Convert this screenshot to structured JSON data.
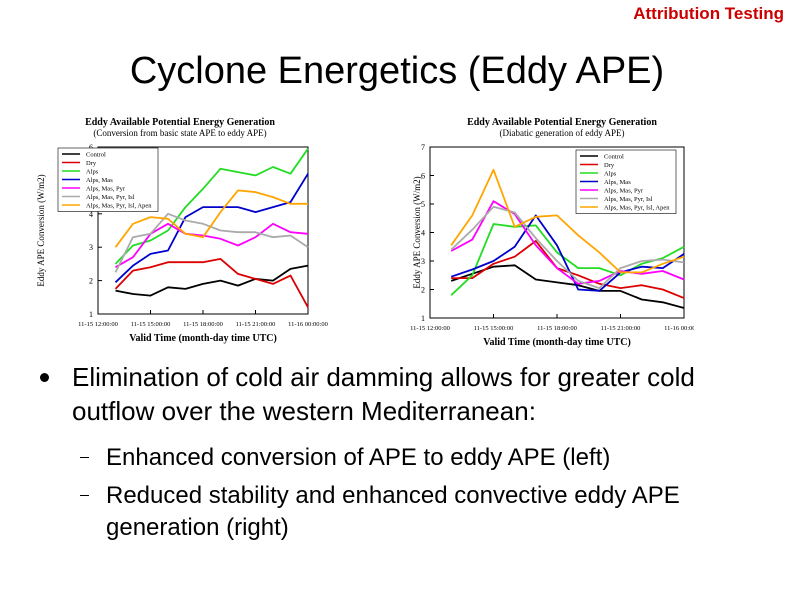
{
  "header": {
    "tag": "Attribution Testing",
    "title": "Cyclone Energetics (Eddy APE)"
  },
  "legend_names": [
    "Control",
    "Dry",
    "Alps",
    "Alps, Mas",
    "Alps, Mas, Pyr",
    "Alps, Mas, Pyr, Isl",
    "Alps, Mas, Pyr, Isl, Apen"
  ],
  "chart_data": [
    {
      "type": "line",
      "title": "Eddy Available Potential Energy Generation",
      "subtitle": "(Conversion from basic state APE to eddy APE)",
      "xlabel": "Valid Time (month-day time UTC)",
      "ylabel": "Eddy APE Conversion (W/m2)",
      "xticks": [
        "11-15 12:00:00",
        "11-15 15:00:00",
        "11-15 18:00:00",
        "11-15 21:00:00",
        "11-16 00:00:00"
      ],
      "yticks": [
        "1",
        "2",
        "3",
        "4",
        "5",
        "6"
      ],
      "xlim": [
        0,
        12
      ],
      "ylim": [
        1,
        6
      ],
      "legend_position": "top-left",
      "colors": [
        "#000000",
        "#dd0000",
        "#22dd22",
        "#0000cc",
        "#ff00ff",
        "#aaaaaa",
        "#ffa500"
      ],
      "series": [
        {
          "name": "Control",
          "color": "#000000",
          "values": [
            null,
            1.7,
            1.6,
            1.55,
            1.8,
            1.75,
            1.9,
            2.0,
            1.85,
            2.05,
            2.0,
            2.35,
            2.45
          ]
        },
        {
          "name": "Dry",
          "color": "#dd0000",
          "values": [
            null,
            1.75,
            2.3,
            2.4,
            2.55,
            2.55,
            2.55,
            2.65,
            2.2,
            2.05,
            1.9,
            2.15,
            1.2
          ]
        },
        {
          "name": "Alps",
          "color": "#22dd22",
          "values": [
            null,
            2.5,
            3.05,
            3.2,
            3.5,
            4.2,
            4.75,
            5.35,
            5.25,
            5.15,
            5.4,
            5.2,
            5.95
          ]
        },
        {
          "name": "Alps, Mas",
          "color": "#0000cc",
          "values": [
            null,
            1.95,
            2.45,
            2.8,
            2.9,
            3.9,
            4.2,
            4.2,
            4.2,
            4.05,
            4.2,
            4.35,
            5.2
          ]
        },
        {
          "name": "Alps, Mas, Pyr",
          "color": "#ff00ff",
          "values": [
            null,
            2.4,
            2.7,
            3.4,
            3.7,
            3.4,
            3.35,
            3.25,
            3.05,
            3.3,
            3.7,
            3.45,
            3.4
          ]
        },
        {
          "name": "Alps, Mas, Pyr, Isl",
          "color": "#aaaaaa",
          "values": [
            null,
            2.25,
            3.3,
            3.4,
            4.0,
            3.8,
            3.7,
            3.5,
            3.45,
            3.45,
            3.3,
            3.35,
            3.0
          ]
        },
        {
          "name": "Alps, Mas, Pyr, Isl, Apen",
          "color": "#ffa500",
          "values": [
            null,
            3.0,
            3.7,
            3.9,
            3.85,
            3.4,
            3.3,
            4.05,
            4.7,
            4.65,
            4.5,
            4.3,
            4.3
          ]
        }
      ]
    },
    {
      "type": "line",
      "title": "Eddy Available Potential Energy Generation",
      "subtitle": "(Diabatic generation of eddy APE)",
      "xlabel": "Valid Time (month-day time UTC)",
      "ylabel": "Eddy APE Conversion (W/m2)",
      "xticks": [
        "11-15 12:00:00",
        "11-15 15:00:00",
        "11-15 18:00:00",
        "11-15 21:00:00",
        "11-16 00:00:00"
      ],
      "yticks": [
        "1",
        "2",
        "3",
        "4",
        "5",
        "6",
        "7"
      ],
      "xlim": [
        0,
        12
      ],
      "ylim": [
        1,
        7
      ],
      "legend_position": "top-right",
      "colors": [
        "#000000",
        "#dd0000",
        "#22dd22",
        "#0000cc",
        "#ff00ff",
        "#aaaaaa",
        "#ffa500"
      ],
      "series": [
        {
          "name": "Control",
          "color": "#000000",
          "values": [
            null,
            2.3,
            2.55,
            2.8,
            2.85,
            2.35,
            2.25,
            2.15,
            1.95,
            1.95,
            1.65,
            1.55,
            1.35
          ]
        },
        {
          "name": "Dry",
          "color": "#dd0000",
          "values": [
            null,
            2.4,
            2.4,
            2.9,
            3.15,
            3.7,
            2.75,
            2.5,
            2.2,
            2.05,
            2.15,
            2.0,
            1.7
          ]
        },
        {
          "name": "Alps",
          "color": "#22dd22",
          "values": [
            null,
            1.8,
            2.5,
            4.3,
            4.2,
            4.25,
            3.3,
            2.75,
            2.75,
            2.5,
            2.9,
            3.1,
            3.5
          ]
        },
        {
          "name": "Alps, Mas",
          "color": "#0000cc",
          "values": [
            null,
            2.45,
            2.7,
            3.0,
            3.5,
            4.6,
            3.55,
            2.0,
            1.95,
            2.6,
            2.8,
            2.75,
            3.25
          ]
        },
        {
          "name": "Alps, Mas, Pyr",
          "color": "#ff00ff",
          "values": [
            null,
            3.35,
            3.75,
            5.1,
            4.65,
            3.55,
            2.75,
            2.2,
            2.3,
            2.65,
            2.55,
            2.65,
            2.35
          ]
        },
        {
          "name": "Alps, Mas, Pyr, Isl",
          "color": "#aaaaaa",
          "values": [
            null,
            3.4,
            4.1,
            4.9,
            4.7,
            3.8,
            3.0,
            2.3,
            2.05,
            2.75,
            3.0,
            3.05,
            2.95
          ]
        },
        {
          "name": "Alps, Mas, Pyr, Isl, Apen",
          "color": "#ffa500",
          "values": [
            null,
            3.55,
            4.6,
            6.2,
            4.2,
            4.55,
            4.6,
            3.9,
            3.3,
            2.6,
            2.6,
            2.9,
            3.15
          ]
        }
      ]
    }
  ],
  "bullets": {
    "main": "Elimination of cold air damming allows for greater cold outflow over the western Mediterranean:",
    "sub": [
      "Enhanced conversion of APE to eddy APE (left)",
      "Reduced stability and enhanced convective eddy APE generation (right)"
    ]
  }
}
